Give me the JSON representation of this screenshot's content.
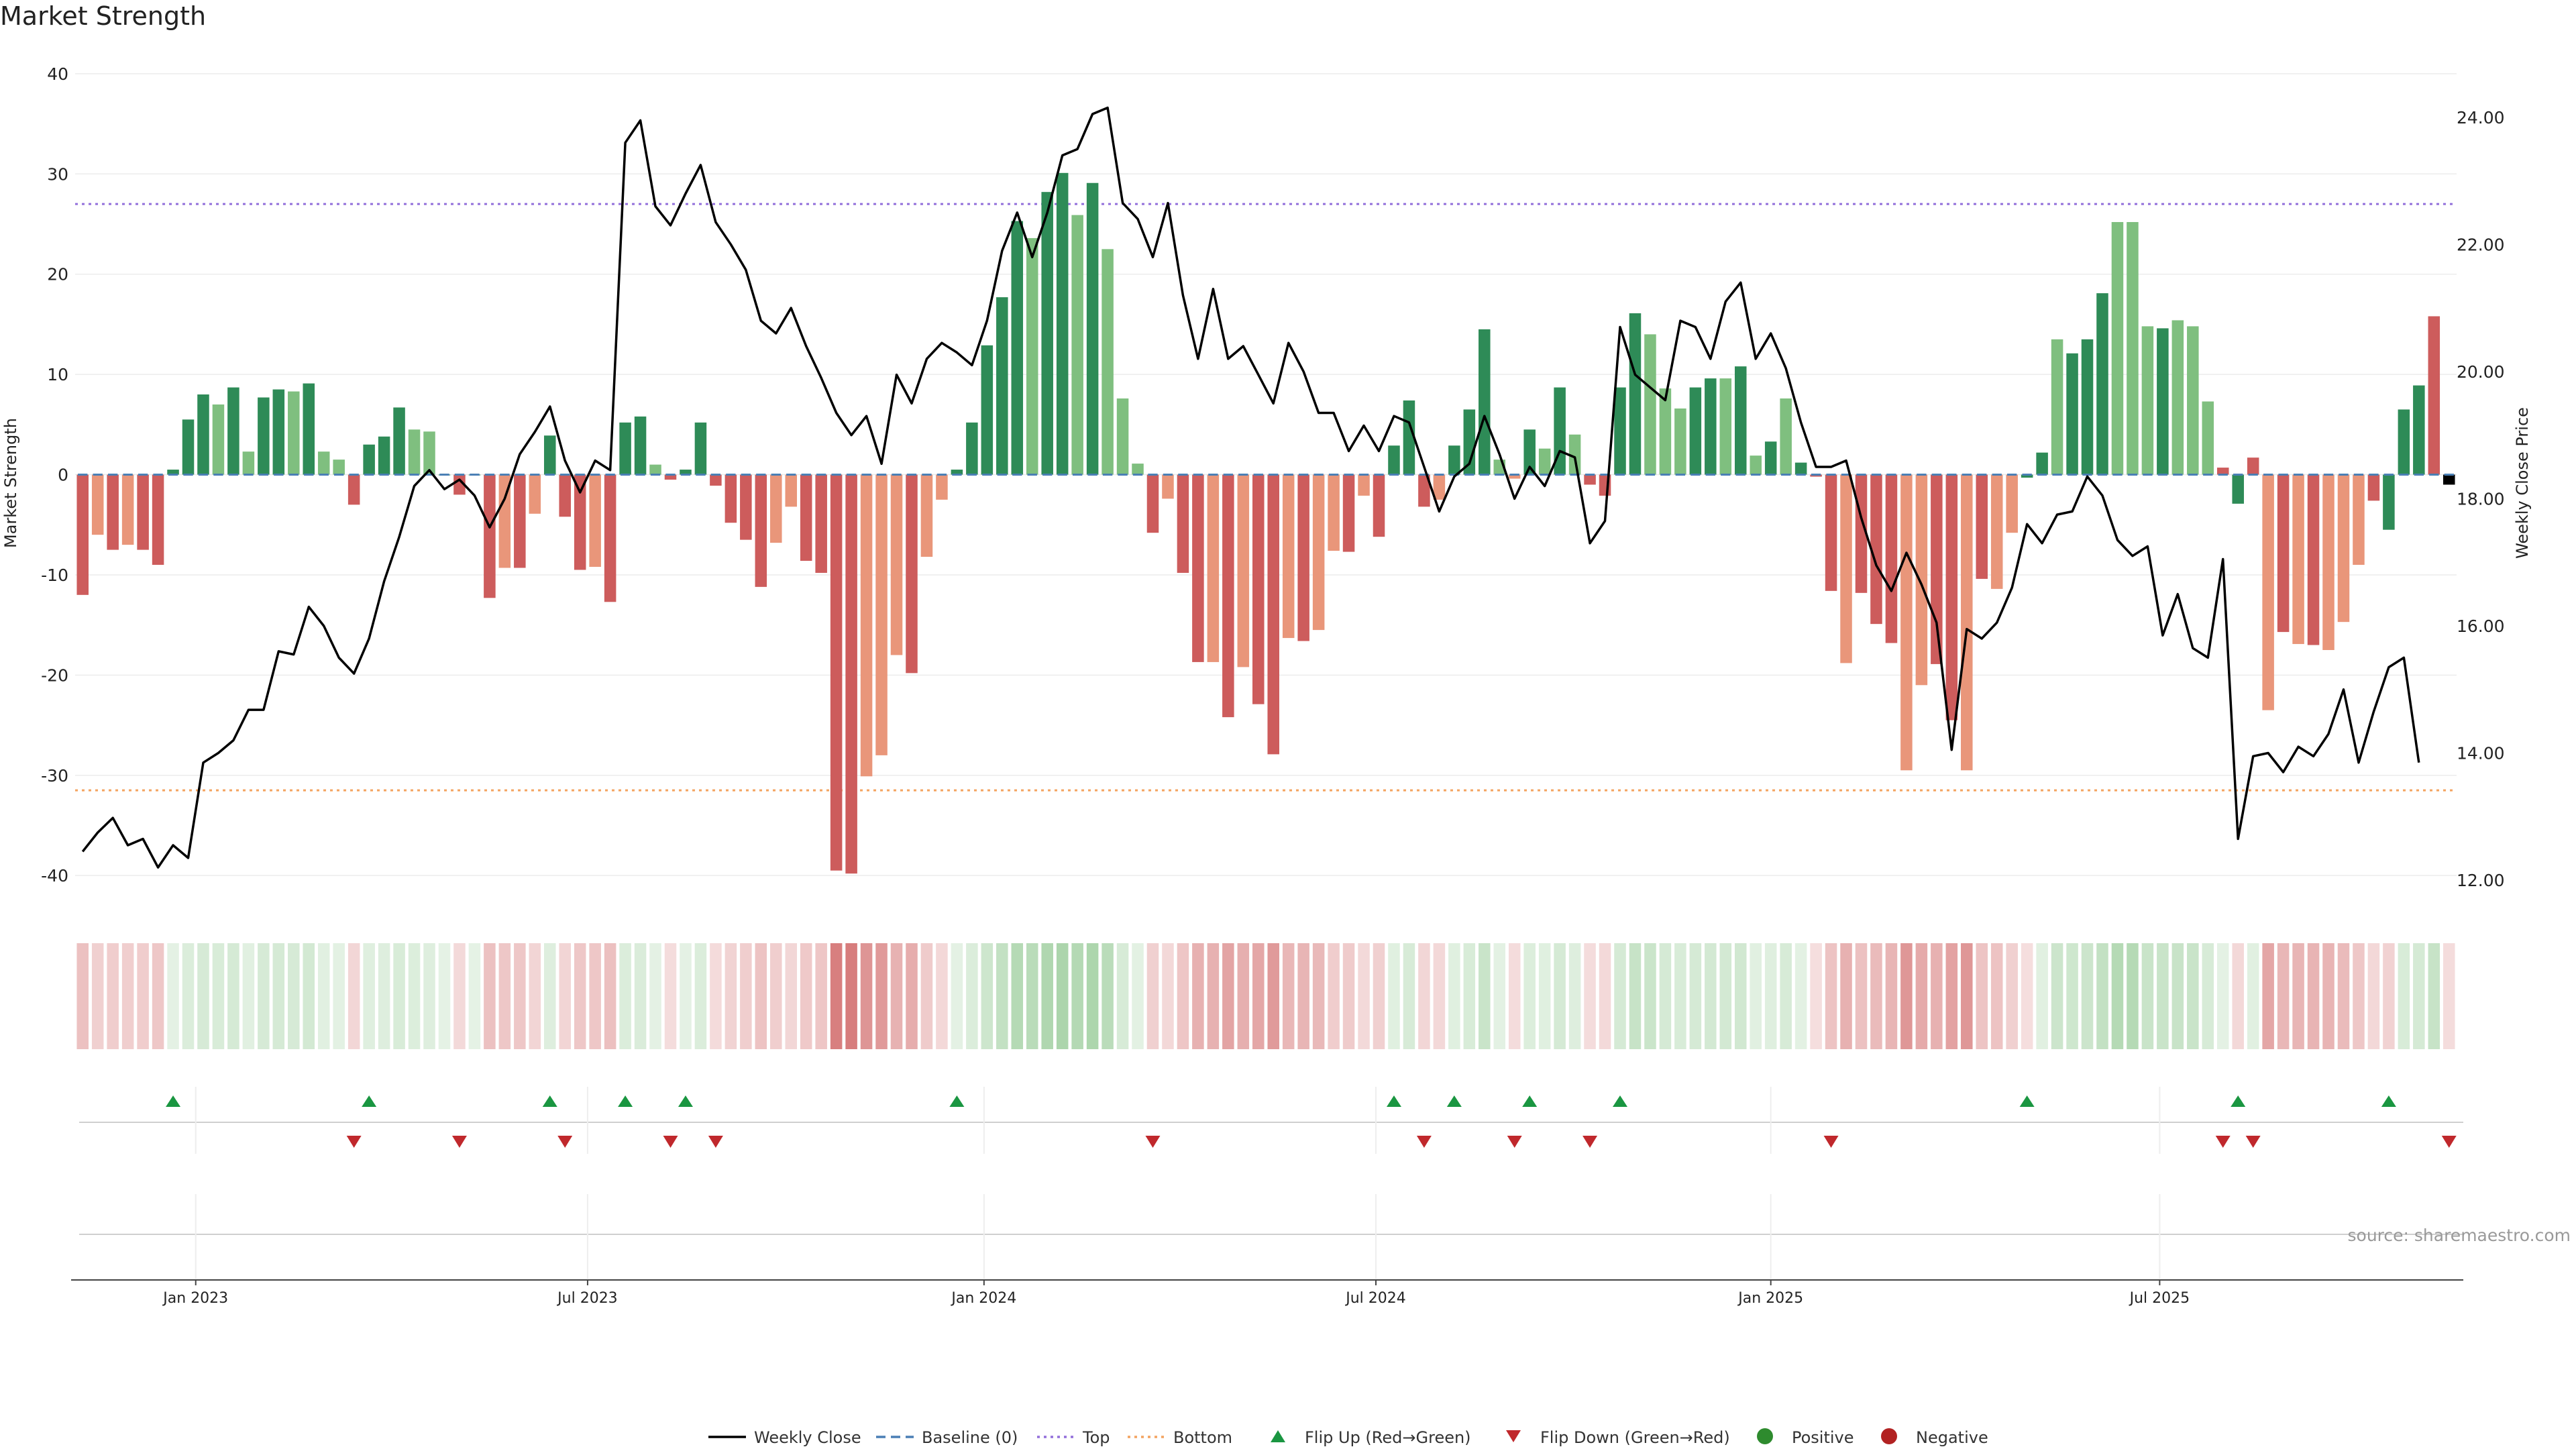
{
  "title": "Market Strength",
  "source": "source: sharemaestro.com",
  "chart_data": {
    "type": "bar",
    "title": "Market Strength",
    "ylabel": "Market Strength",
    "ylabel_right": "Weekly Close Price",
    "ylim": [
      -43,
      42
    ],
    "ylim_right": [
      11.6,
      25.0
    ],
    "yticks": [
      -40,
      -30,
      -20,
      -10,
      0,
      10,
      20,
      30,
      40
    ],
    "yticks_right": [
      "12.00",
      "14.00",
      "16.00",
      "18.00",
      "20.00",
      "22.00",
      "24.00"
    ],
    "top_line": 27,
    "bottom_line": -31.5,
    "x_dates": [
      "Jan 2023",
      "Jul 2023",
      "Jan 2024",
      "Jul 2024",
      "Jan 2025",
      "Jul 2025"
    ],
    "x_date_index": [
      7.5,
      33.5,
      59.8,
      85.8,
      112.0,
      137.8
    ],
    "bar_values": [
      -12,
      -6,
      -7.5,
      -7,
      -7.5,
      -9,
      0.5,
      5.5,
      8,
      7,
      8.7,
      2.3,
      7.7,
      8.5,
      8.3,
      9.1,
      2.3,
      1.5,
      -3,
      3,
      3.8,
      6.7,
      4.5,
      4.3,
      0,
      -2,
      0,
      -12.3,
      -9.3,
      -9.3,
      -3.9,
      3.9,
      -4.2,
      -9.5,
      -9.2,
      -12.7,
      5.2,
      5.8,
      1.0,
      -0.5,
      0.5,
      5.2,
      -1.1,
      -4.8,
      -6.5,
      -11.2,
      -6.8,
      -3.2,
      -8.6,
      -9.8,
      -39.5,
      -39.8,
      -30.1,
      -28,
      -18,
      -19.8,
      -8.2,
      -2.5,
      0.5,
      5.2,
      12.9,
      17.7,
      25.3,
      23.6,
      28.2,
      30.1,
      25.9,
      29.1,
      22.5,
      7.6,
      1.1,
      -5.8,
      -2.4,
      -9.8,
      -18.7,
      -18.7,
      -24.2,
      -19.2,
      -22.9,
      -27.9,
      -16.3,
      -16.6,
      -15.5,
      -7.6,
      -7.7,
      -2.1,
      -6.2,
      2.9,
      7.4,
      -3.2,
      -2.5,
      2.9,
      6.5,
      14.5,
      1.5,
      -0.4,
      4.5,
      2.6,
      8.7,
      4,
      -1,
      -2.1,
      8.7,
      16.1,
      14,
      8.6,
      6.6,
      8.7,
      9.6,
      9.6,
      10.8,
      1.9,
      3.3,
      7.6,
      1.2,
      -0.2,
      -11.6,
      -18.8,
      -11.8,
      -14.9,
      -16.8,
      -29.5,
      -21,
      -18.9,
      -24.5,
      -29.5,
      -10.4,
      -11.4,
      -5.8,
      -0.3,
      2.2,
      13.5,
      12.1,
      13.5,
      18.1,
      25.2,
      25.2,
      14.8,
      14.6,
      15.4,
      14.8,
      7.3,
      0.7,
      -2.9,
      1.7,
      -23.5,
      -15.7,
      -16.9,
      -17,
      -17.5,
      -14.7,
      -9,
      -2.6,
      -5.5,
      6.5,
      8.9,
      15.8,
      -1
    ],
    "bar_style": [
      "rn",
      "ra",
      "rn",
      "ra",
      "rn",
      "rn",
      "gn",
      "gn",
      "gn",
      "ga",
      "gn",
      "ga",
      "gn",
      "gn",
      "ga",
      "gn",
      "ga",
      "ga",
      "rn",
      "gn",
      "gn",
      "gn",
      "ga",
      "ga",
      "gn",
      "rn",
      "gn",
      "rn",
      "ra",
      "rn",
      "ra",
      "gn",
      "rn",
      "rn",
      "ra",
      "rn",
      "gn",
      "gn",
      "ga",
      "rn",
      "gn",
      "gn",
      "rn",
      "rn",
      "rn",
      "rn",
      "ra",
      "ra",
      "rn",
      "rn",
      "rn",
      "rn",
      "ra",
      "ra",
      "ra",
      "rn",
      "ra",
      "ra",
      "gn",
      "gn",
      "gn",
      "gn",
      "gn",
      "ga",
      "gn",
      "gn",
      "ga",
      "gn",
      "ga",
      "ga",
      "ga",
      "rn",
      "ra",
      "rn",
      "rn",
      "ra",
      "rn",
      "ra",
      "rn",
      "rn",
      "ra",
      "rn",
      "ra",
      "ra",
      "rn",
      "ra",
      "rn",
      "gn",
      "gn",
      "rn",
      "ra",
      "gn",
      "gn",
      "gn",
      "ga",
      "ra",
      "gn",
      "ga",
      "gn",
      "ga",
      "rn",
      "rn",
      "gn",
      "gn",
      "ga",
      "ga",
      "ga",
      "gn",
      "gn",
      "ga",
      "gn",
      "ga",
      "gn",
      "ga",
      "gn",
      "rn",
      "rn",
      "ra",
      "rn",
      "rn",
      "rn",
      "ra",
      "ra",
      "rn",
      "rn",
      "ra",
      "rn",
      "ra",
      "ra",
      "gn",
      "gn",
      "ga",
      "gn",
      "gn",
      "gn",
      "ga",
      "ga",
      "ga",
      "gn",
      "ga",
      "ga",
      "ga",
      "rn",
      "gn",
      "rn",
      "ra",
      "rn",
      "ra",
      "rn",
      "ra",
      "ra",
      "ra",
      "rn",
      "gn",
      "gn",
      "gn",
      "rn"
    ],
    "price": [
      12.45,
      12.75,
      12.98,
      12.55,
      12.65,
      12.2,
      12.55,
      12.35,
      13.85,
      14.0,
      14.2,
      14.68,
      14.68,
      15.6,
      15.55,
      16.3,
      16.0,
      15.5,
      15.25,
      15.8,
      16.7,
      17.4,
      18.2,
      18.45,
      18.15,
      18.3,
      18.05,
      17.55,
      18.0,
      18.7,
      19.05,
      19.45,
      18.6,
      18.1,
      18.6,
      18.45,
      23.6,
      23.95,
      22.6,
      22.3,
      22.8,
      23.25,
      22.35,
      22.0,
      21.6,
      20.8,
      20.6,
      21.0,
      20.4,
      19.9,
      19.35,
      19.0,
      19.3,
      18.55,
      19.95,
      19.5,
      20.2,
      20.45,
      20.3,
      20.1,
      20.8,
      21.9,
      22.5,
      21.8,
      22.5,
      23.4,
      23.5,
      24.05,
      24.15,
      22.65,
      22.4,
      21.8,
      22.65,
      21.2,
      20.2,
      21.3,
      20.2,
      20.4,
      19.95,
      19.5,
      20.45,
      20.0,
      19.35,
      19.35,
      18.75,
      19.15,
      18.75,
      19.3,
      19.2,
      18.5,
      17.8,
      18.35,
      18.55,
      19.3,
      18.7,
      18.0,
      18.5,
      18.2,
      18.75,
      18.65,
      17.3,
      17.65,
      20.7,
      19.95,
      19.75,
      19.55,
      20.8,
      20.7,
      20.2,
      21.1,
      21.4,
      20.2,
      20.6,
      20.05,
      19.2,
      18.5,
      18.5,
      18.6,
      17.7,
      16.95,
      16.55,
      17.15,
      16.65,
      16.05,
      14.05,
      15.95,
      15.8,
      16.05,
      16.6,
      17.6,
      17.3,
      17.75,
      17.8,
      18.35,
      18.05,
      17.35,
      17.1,
      17.25,
      15.85,
      16.5,
      15.65,
      15.5,
      17.05,
      12.65,
      13.95,
      14.0,
      13.7,
      14.1,
      13.95,
      14.3,
      15.0,
      13.85,
      14.65,
      15.35,
      15.5,
      13.85
    ],
    "flip_up_index": [
      6,
      19,
      31,
      36,
      40,
      58,
      87,
      91,
      96,
      102,
      129,
      143,
      153
    ],
    "flip_down_index": [
      18,
      25,
      32,
      39,
      42,
      71,
      89,
      95,
      100,
      116,
      142,
      144,
      157
    ],
    "legend": {
      "weekly_close": "Weekly Close",
      "baseline": "Baseline (0)",
      "top": "Top",
      "bottom": "Bottom",
      "flip_up": "Flip Up (Red→Green)",
      "flip_down": "Flip Down (Green→Red)",
      "positive": "Positive",
      "negative": "Negative"
    },
    "colors": {
      "green_dark": "#2e8b57",
      "green_light": "#7fbf7f",
      "red_dark": "#cd5c5c",
      "red_light": "#e9967a",
      "price_line": "#000000",
      "baseline": "#4a7fb5",
      "top": "#9370db",
      "bottom": "#f4a460",
      "flip_up": "#1a9641",
      "flip_down": "#c0282c",
      "positive": "#2e8b2e",
      "negative": "#b22222"
    }
  }
}
